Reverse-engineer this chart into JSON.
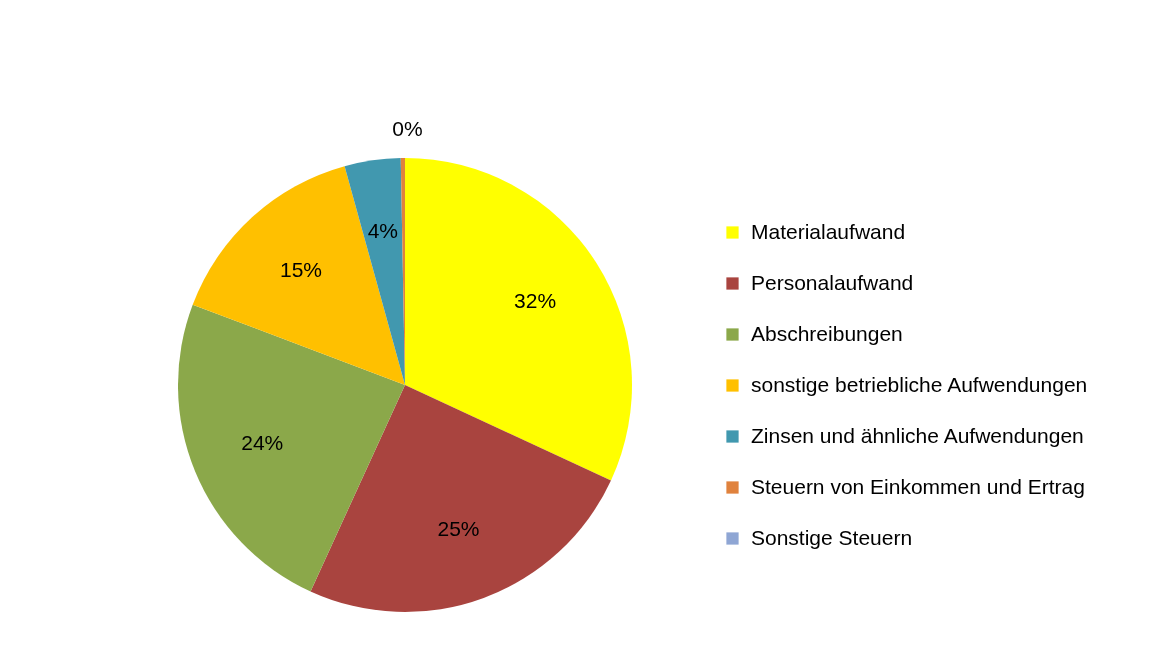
{
  "chart_data": {
    "type": "pie",
    "categories": [
      "Materialaufwand",
      "Personalaufwand",
      "Abschreibungen",
      "sonstige betriebliche Aufwendungen",
      "Zinsen und ähnliche Aufwendungen",
      "Steuern von Einkommen und Ertrag",
      "Sonstige Steuern"
    ],
    "values": [
      32,
      25,
      24,
      15,
      4,
      0.3,
      0
    ],
    "colors": [
      "#ffff00",
      "#a9443f",
      "#8ba84a",
      "#ffc000",
      "#4198af",
      "#e0823d",
      "#8fa6d4"
    ],
    "value_labels": [
      "32%",
      "25%",
      "24%",
      "15%",
      "4%",
      "0%",
      null
    ],
    "legend": "right"
  }
}
